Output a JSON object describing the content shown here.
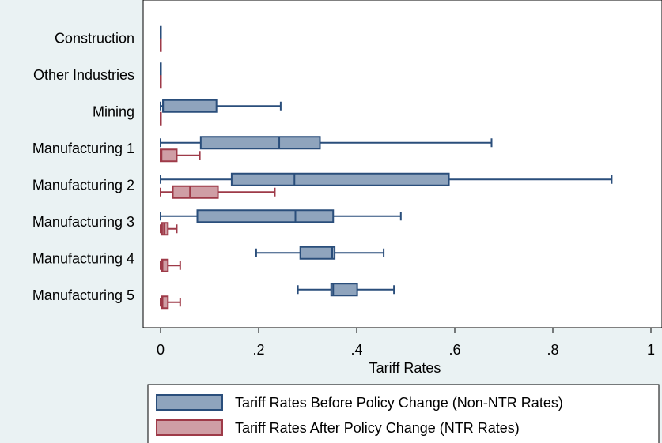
{
  "chart_data": {
    "type": "boxplot",
    "orientation": "horizontal",
    "title": "",
    "xlabel": "Tariff Rates",
    "ylabel": "",
    "xlim": [
      0,
      1
    ],
    "xticks": [
      0,
      0.2,
      0.4,
      0.6,
      0.8,
      1
    ],
    "xtick_labels": [
      "0",
      ".2",
      ".4",
      ".6",
      ".8",
      "1"
    ],
    "grid": false,
    "legend_position": "bottom",
    "categories": [
      "Construction",
      "Other Industries",
      "Mining",
      "Manufacturing 1",
      "Manufacturing 2",
      "Manufacturing 3",
      "Manufacturing 4",
      "Manufacturing 5"
    ],
    "series": [
      {
        "name": "Tariff Rates Before Policy Change (Non-NTR Rates)",
        "color": "#2a4e7b",
        "fill": "#8fa4bd",
        "boxes": [
          {
            "min": 0,
            "q1": 0,
            "median": 0,
            "q3": 0,
            "max": 0
          },
          {
            "min": 0,
            "q1": 0,
            "median": 0,
            "q3": 0,
            "max": 0
          },
          {
            "min": 0,
            "q1": 0.005,
            "median": 0.005,
            "q3": 0.114,
            "max": 0.245
          },
          {
            "min": 0,
            "q1": 0.082,
            "median": 0.242,
            "q3": 0.325,
            "max": 0.675
          },
          {
            "min": 0,
            "q1": 0.145,
            "median": 0.273,
            "q3": 0.588,
            "max": 0.92
          },
          {
            "min": 0,
            "q1": 0.075,
            "median": 0.275,
            "q3": 0.352,
            "max": 0.49
          },
          {
            "min": 0.195,
            "q1": 0.285,
            "median": 0.35,
            "q3": 0.355,
            "max": 0.455
          },
          {
            "min": 0.28,
            "q1": 0.348,
            "median": 0.352,
            "q3": 0.401,
            "max": 0.476
          }
        ]
      },
      {
        "name": "Tariff Rates After Policy Change (NTR Rates)",
        "color": "#9e3a48",
        "fill": "#cf9ea5",
        "boxes": [
          {
            "min": 0,
            "q1": 0,
            "median": 0,
            "q3": 0,
            "max": 0
          },
          {
            "min": 0,
            "q1": 0,
            "median": 0,
            "q3": 0,
            "max": 0
          },
          {
            "min": 0,
            "q1": 0,
            "median": 0,
            "q3": 0,
            "max": 0
          },
          {
            "min": 0,
            "q1": 0,
            "median": 0.002,
            "q3": 0.033,
            "max": 0.08
          },
          {
            "min": 0,
            "q1": 0.025,
            "median": 0.06,
            "q3": 0.117,
            "max": 0.233
          },
          {
            "min": 0,
            "q1": 0.003,
            "median": 0.007,
            "q3": 0.015,
            "max": 0.033
          },
          {
            "min": 0,
            "q1": 0.002,
            "median": 0.004,
            "q3": 0.015,
            "max": 0.04
          },
          {
            "min": 0,
            "q1": 0.002,
            "median": 0.004,
            "q3": 0.015,
            "max": 0.04
          }
        ]
      }
    ]
  }
}
